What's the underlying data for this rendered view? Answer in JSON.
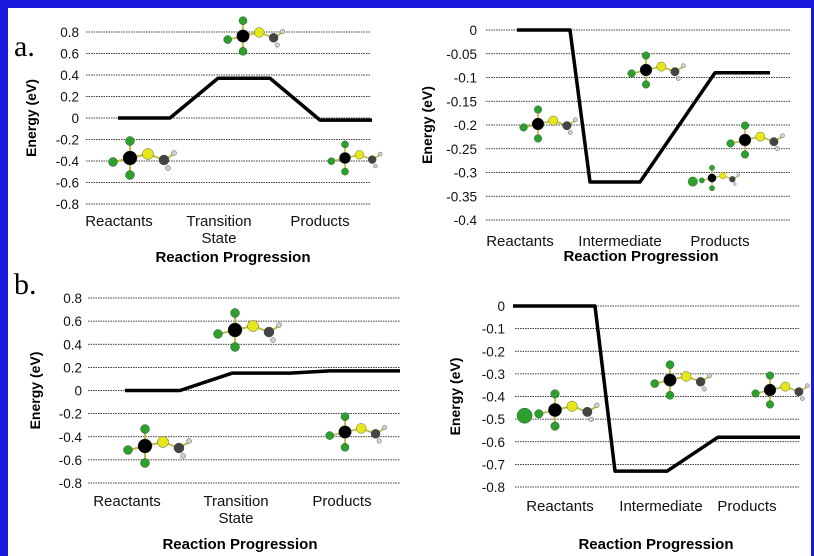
{
  "panel_labels": [
    "a.",
    "b."
  ],
  "colors": {
    "frame": "#1a1adc",
    "line": "#000000",
    "grid": "#000000",
    "cl": "#2ca02c",
    "s": "#e6e61a",
    "c": "#000000",
    "h": "#d0d0d0"
  },
  "molecule_icons": [
    "ball-and-stick-molecule"
  ],
  "chart_data": [
    {
      "type": "line",
      "title": "",
      "xlabel": "Reaction Progression",
      "ylabel": "Energy (eV)",
      "categories": [
        "Reactants",
        "Transition State",
        "Products"
      ],
      "category_lines": [
        [
          "Reactants"
        ],
        [
          "Transition",
          "State"
        ],
        [
          "Products"
        ]
      ],
      "ylim": [
        -0.8,
        0.8
      ],
      "yticks": [
        0.8,
        0.6,
        0.4,
        0.2,
        0,
        -0.2,
        -0.4,
        -0.6,
        -0.8
      ],
      "ytick_labels": [
        "0.8",
        "0.6",
        "0.4",
        "0.2",
        "0",
        "-0.2",
        "-0.4",
        "-0.6",
        "-0.8"
      ],
      "series": [
        {
          "values": [
            0,
            0.37,
            -0.02
          ]
        }
      ],
      "grid": true
    },
    {
      "type": "line",
      "title": "",
      "xlabel": "Reaction Progression",
      "ylabel": "Energy (eV)",
      "categories": [
        "Reactants",
        "Intermediate",
        "Products"
      ],
      "category_lines": [
        [
          "Reactants"
        ],
        [
          "Intermediate"
        ],
        [
          "Products"
        ]
      ],
      "ylim": [
        -0.4,
        0
      ],
      "yticks": [
        0,
        -0.05,
        -0.1,
        -0.15,
        -0.2,
        -0.25,
        -0.3,
        -0.35,
        -0.4
      ],
      "ytick_labels": [
        "0",
        "-0.05",
        "-0.1",
        "-0.15",
        "-0.2",
        "-0.25",
        "-0.3",
        "-0.35",
        "-0.4"
      ],
      "series": [
        {
          "values": [
            0,
            -0.32,
            -0.09
          ]
        }
      ],
      "grid": true
    },
    {
      "type": "line",
      "title": "",
      "xlabel": "Reaction Progression",
      "ylabel": "Energy (eV)",
      "categories": [
        "Reactants",
        "Transition State",
        "Products"
      ],
      "category_lines": [
        [
          "Reactants"
        ],
        [
          "Transition",
          "State"
        ],
        [
          "Products"
        ]
      ],
      "ylim": [
        -0.8,
        0.8
      ],
      "yticks": [
        0.8,
        0.6,
        0.4,
        0.2,
        0,
        -0.2,
        -0.4,
        -0.6,
        -0.8
      ],
      "ytick_labels": [
        "0.8",
        "0.6",
        "0.4",
        "0.2",
        "0",
        "-0.2",
        "-0.4",
        "-0.6",
        "-0.8"
      ],
      "series": [
        {
          "values": [
            0,
            0.15,
            0.17
          ]
        }
      ],
      "grid": true
    },
    {
      "type": "line",
      "title": "",
      "xlabel": "Reaction Progression",
      "ylabel": "Energy (eV)",
      "categories": [
        "Reactants",
        "Intermediate",
        "Products"
      ],
      "category_lines": [
        [
          "Reactants"
        ],
        [
          "Intermediate"
        ],
        [
          "Products"
        ]
      ],
      "ylim": [
        -0.8,
        0
      ],
      "yticks": [
        0,
        -0.1,
        -0.2,
        -0.3,
        -0.4,
        -0.5,
        -0.6,
        -0.7,
        -0.8
      ],
      "ytick_labels": [
        "0",
        "-0.1",
        "-0.2",
        "-0.3",
        "-0.4",
        "-0.5",
        "-0.6",
        "-0.7",
        "-0.8"
      ],
      "series": [
        {
          "values": [
            0,
            -0.73,
            -0.58
          ]
        }
      ],
      "grid": true
    }
  ]
}
